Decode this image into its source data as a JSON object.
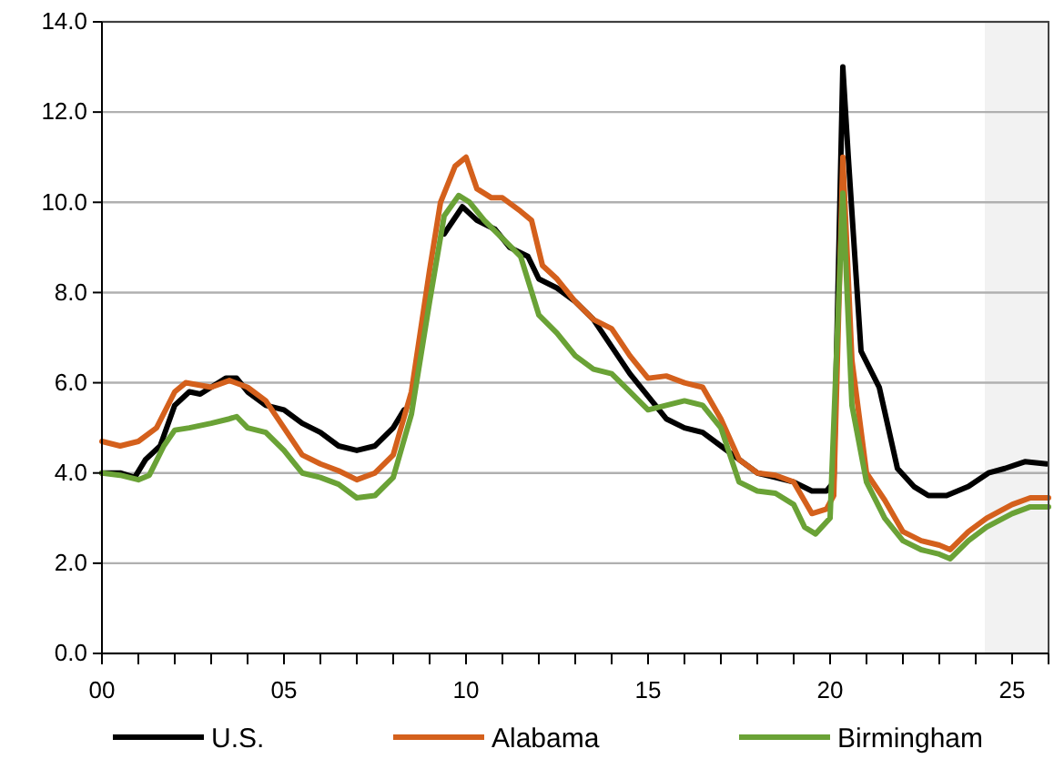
{
  "chart_data": {
    "type": "line",
    "xlim": [
      0,
      26
    ],
    "ylim": [
      0,
      14
    ],
    "xticks": [
      {
        "value": 0,
        "label": "00"
      },
      {
        "value": 1,
        "label": null
      },
      {
        "value": 2,
        "label": null
      },
      {
        "value": 3,
        "label": null
      },
      {
        "value": 4,
        "label": null
      },
      {
        "value": 5,
        "label": "05"
      },
      {
        "value": 6,
        "label": null
      },
      {
        "value": 7,
        "label": null
      },
      {
        "value": 8,
        "label": null
      },
      {
        "value": 9,
        "label": null
      },
      {
        "value": 10,
        "label": "10"
      },
      {
        "value": 11,
        "label": null
      },
      {
        "value": 12,
        "label": null
      },
      {
        "value": 13,
        "label": null
      },
      {
        "value": 14,
        "label": null
      },
      {
        "value": 15,
        "label": "15"
      },
      {
        "value": 16,
        "label": null
      },
      {
        "value": 17,
        "label": null
      },
      {
        "value": 18,
        "label": null
      },
      {
        "value": 19,
        "label": null
      },
      {
        "value": 20,
        "label": "20"
      },
      {
        "value": 21,
        "label": null
      },
      {
        "value": 22,
        "label": null
      },
      {
        "value": 23,
        "label": null
      },
      {
        "value": 24,
        "label": null
      },
      {
        "value": 25,
        "label": "25"
      },
      {
        "value": 26,
        "label": null
      }
    ],
    "yticks": [
      {
        "value": 0,
        "label": "0.0"
      },
      {
        "value": 2,
        "label": "2.0"
      },
      {
        "value": 4,
        "label": "4.0"
      },
      {
        "value": 6,
        "label": "6.0"
      },
      {
        "value": 8,
        "label": "8.0"
      },
      {
        "value": 10,
        "label": "10.0"
      },
      {
        "value": 12,
        "label": "12.0"
      },
      {
        "value": 14,
        "label": "14.0"
      }
    ],
    "grid": "y",
    "legend": "bottom",
    "marker": "none",
    "line_style": "solid",
    "bands": [
      {
        "axis": "x",
        "from": 24.25,
        "to": 26,
        "color": "#f2f2f2"
      }
    ],
    "series": [
      {
        "name": "U.S.",
        "color": "#000000",
        "x": [
          0,
          0.5,
          0.9,
          1.2,
          1.6,
          2,
          2.4,
          2.7,
          3,
          3.4,
          3.7,
          4,
          4.5,
          5,
          5.5,
          6,
          6.5,
          7,
          7.5,
          8,
          8.3,
          8.7,
          9,
          9.4,
          9.9,
          10.3,
          10.8,
          11.2,
          11.7,
          12,
          12.5,
          13,
          13.5,
          14,
          14.5,
          15,
          15.5,
          16,
          16.5,
          17,
          17.5,
          18,
          18.5,
          19,
          19.5,
          19.9,
          20.1,
          20.35,
          20.5,
          20.85,
          21.35,
          21.85,
          22.3,
          22.7,
          23.2,
          23.8,
          24.35,
          24.8,
          25.35,
          25.95
        ],
        "values": [
          4.0,
          4.0,
          3.9,
          4.3,
          4.6,
          5.5,
          5.8,
          5.75,
          5.9,
          6.1,
          6.1,
          5.8,
          5.5,
          5.4,
          5.1,
          4.9,
          4.6,
          4.5,
          4.6,
          5.0,
          5.4,
          null,
          null,
          9.3,
          9.9,
          9.6,
          9.4,
          9.0,
          8.8,
          8.3,
          8.1,
          7.8,
          7.4,
          6.8,
          6.2,
          5.7,
          5.2,
          5.0,
          4.9,
          4.6,
          4.3,
          4.0,
          3.9,
          3.8,
          3.6,
          3.6,
          3.8,
          13.0,
          11.0,
          6.7,
          5.9,
          4.1,
          3.7,
          3.5,
          3.5,
          3.7,
          4.0,
          4.1,
          4.25,
          4.2
        ]
      },
      {
        "name": "Alabama",
        "color": "#d4601c",
        "x": [
          0,
          0.5,
          1,
          1.5,
          2,
          2.3,
          3,
          3.5,
          4,
          4.5,
          5,
          5.5,
          6,
          6.5,
          7,
          7.5,
          8,
          8.5,
          9,
          9.3,
          9.7,
          10,
          10.3,
          10.7,
          11,
          11.5,
          11.8,
          12.1,
          12.5,
          13,
          13.5,
          14,
          14.5,
          15,
          15.5,
          16,
          16.5,
          17,
          17.5,
          18,
          18.5,
          19,
          19.5,
          19.9,
          20.1,
          20.35,
          20.6,
          21,
          21.5,
          22,
          22.5,
          23,
          23.3,
          23.8,
          24.3,
          25,
          25.5,
          26
        ],
        "values": [
          4.7,
          4.6,
          4.7,
          5.0,
          5.8,
          6.0,
          5.9,
          6.05,
          5.9,
          5.6,
          5.0,
          4.4,
          4.2,
          4.05,
          3.85,
          4.0,
          4.4,
          5.8,
          8.5,
          10.0,
          10.8,
          11.0,
          10.3,
          10.1,
          10.1,
          9.8,
          9.6,
          8.6,
          8.3,
          7.8,
          7.4,
          7.2,
          6.6,
          6.1,
          6.15,
          6.0,
          5.9,
          5.2,
          4.3,
          4.0,
          3.95,
          3.8,
          3.1,
          3.2,
          3.5,
          11.0,
          6.5,
          4.0,
          3.4,
          2.7,
          2.5,
          2.4,
          2.3,
          2.7,
          3.0,
          3.3,
          3.45,
          3.45
        ]
      },
      {
        "name": "Birmingham",
        "color": "#6aa236",
        "x": [
          0,
          0.5,
          1,
          1.3,
          1.7,
          2,
          2.4,
          3,
          3.5,
          3.7,
          4,
          4.5,
          5,
          5.5,
          6,
          6.5,
          7,
          7.5,
          8,
          8.5,
          9,
          9.4,
          9.8,
          10.1,
          10.5,
          11,
          11.5,
          12,
          12.5,
          13,
          13.5,
          14,
          14.5,
          15,
          15.5,
          16,
          16.5,
          17,
          17.5,
          18,
          18.5,
          19,
          19.3,
          19.6,
          20,
          20.35,
          20.6,
          21,
          21.5,
          22,
          22.5,
          23,
          23.3,
          23.8,
          24.3,
          25,
          25.5,
          26
        ],
        "values": [
          4.0,
          3.95,
          3.85,
          3.95,
          4.6,
          4.95,
          5.0,
          5.1,
          5.2,
          5.25,
          5.0,
          4.9,
          4.5,
          4.0,
          3.9,
          3.75,
          3.45,
          3.5,
          3.9,
          5.3,
          7.8,
          9.7,
          10.15,
          10.0,
          9.6,
          9.2,
          8.8,
          7.5,
          7.1,
          6.6,
          6.3,
          6.2,
          5.8,
          5.4,
          5.5,
          5.6,
          5.5,
          5.0,
          3.8,
          3.6,
          3.55,
          3.3,
          2.8,
          2.65,
          3.0,
          10.2,
          5.5,
          3.8,
          3.0,
          2.5,
          2.3,
          2.2,
          2.1,
          2.5,
          2.8,
          3.1,
          3.25,
          3.25
        ]
      }
    ]
  }
}
